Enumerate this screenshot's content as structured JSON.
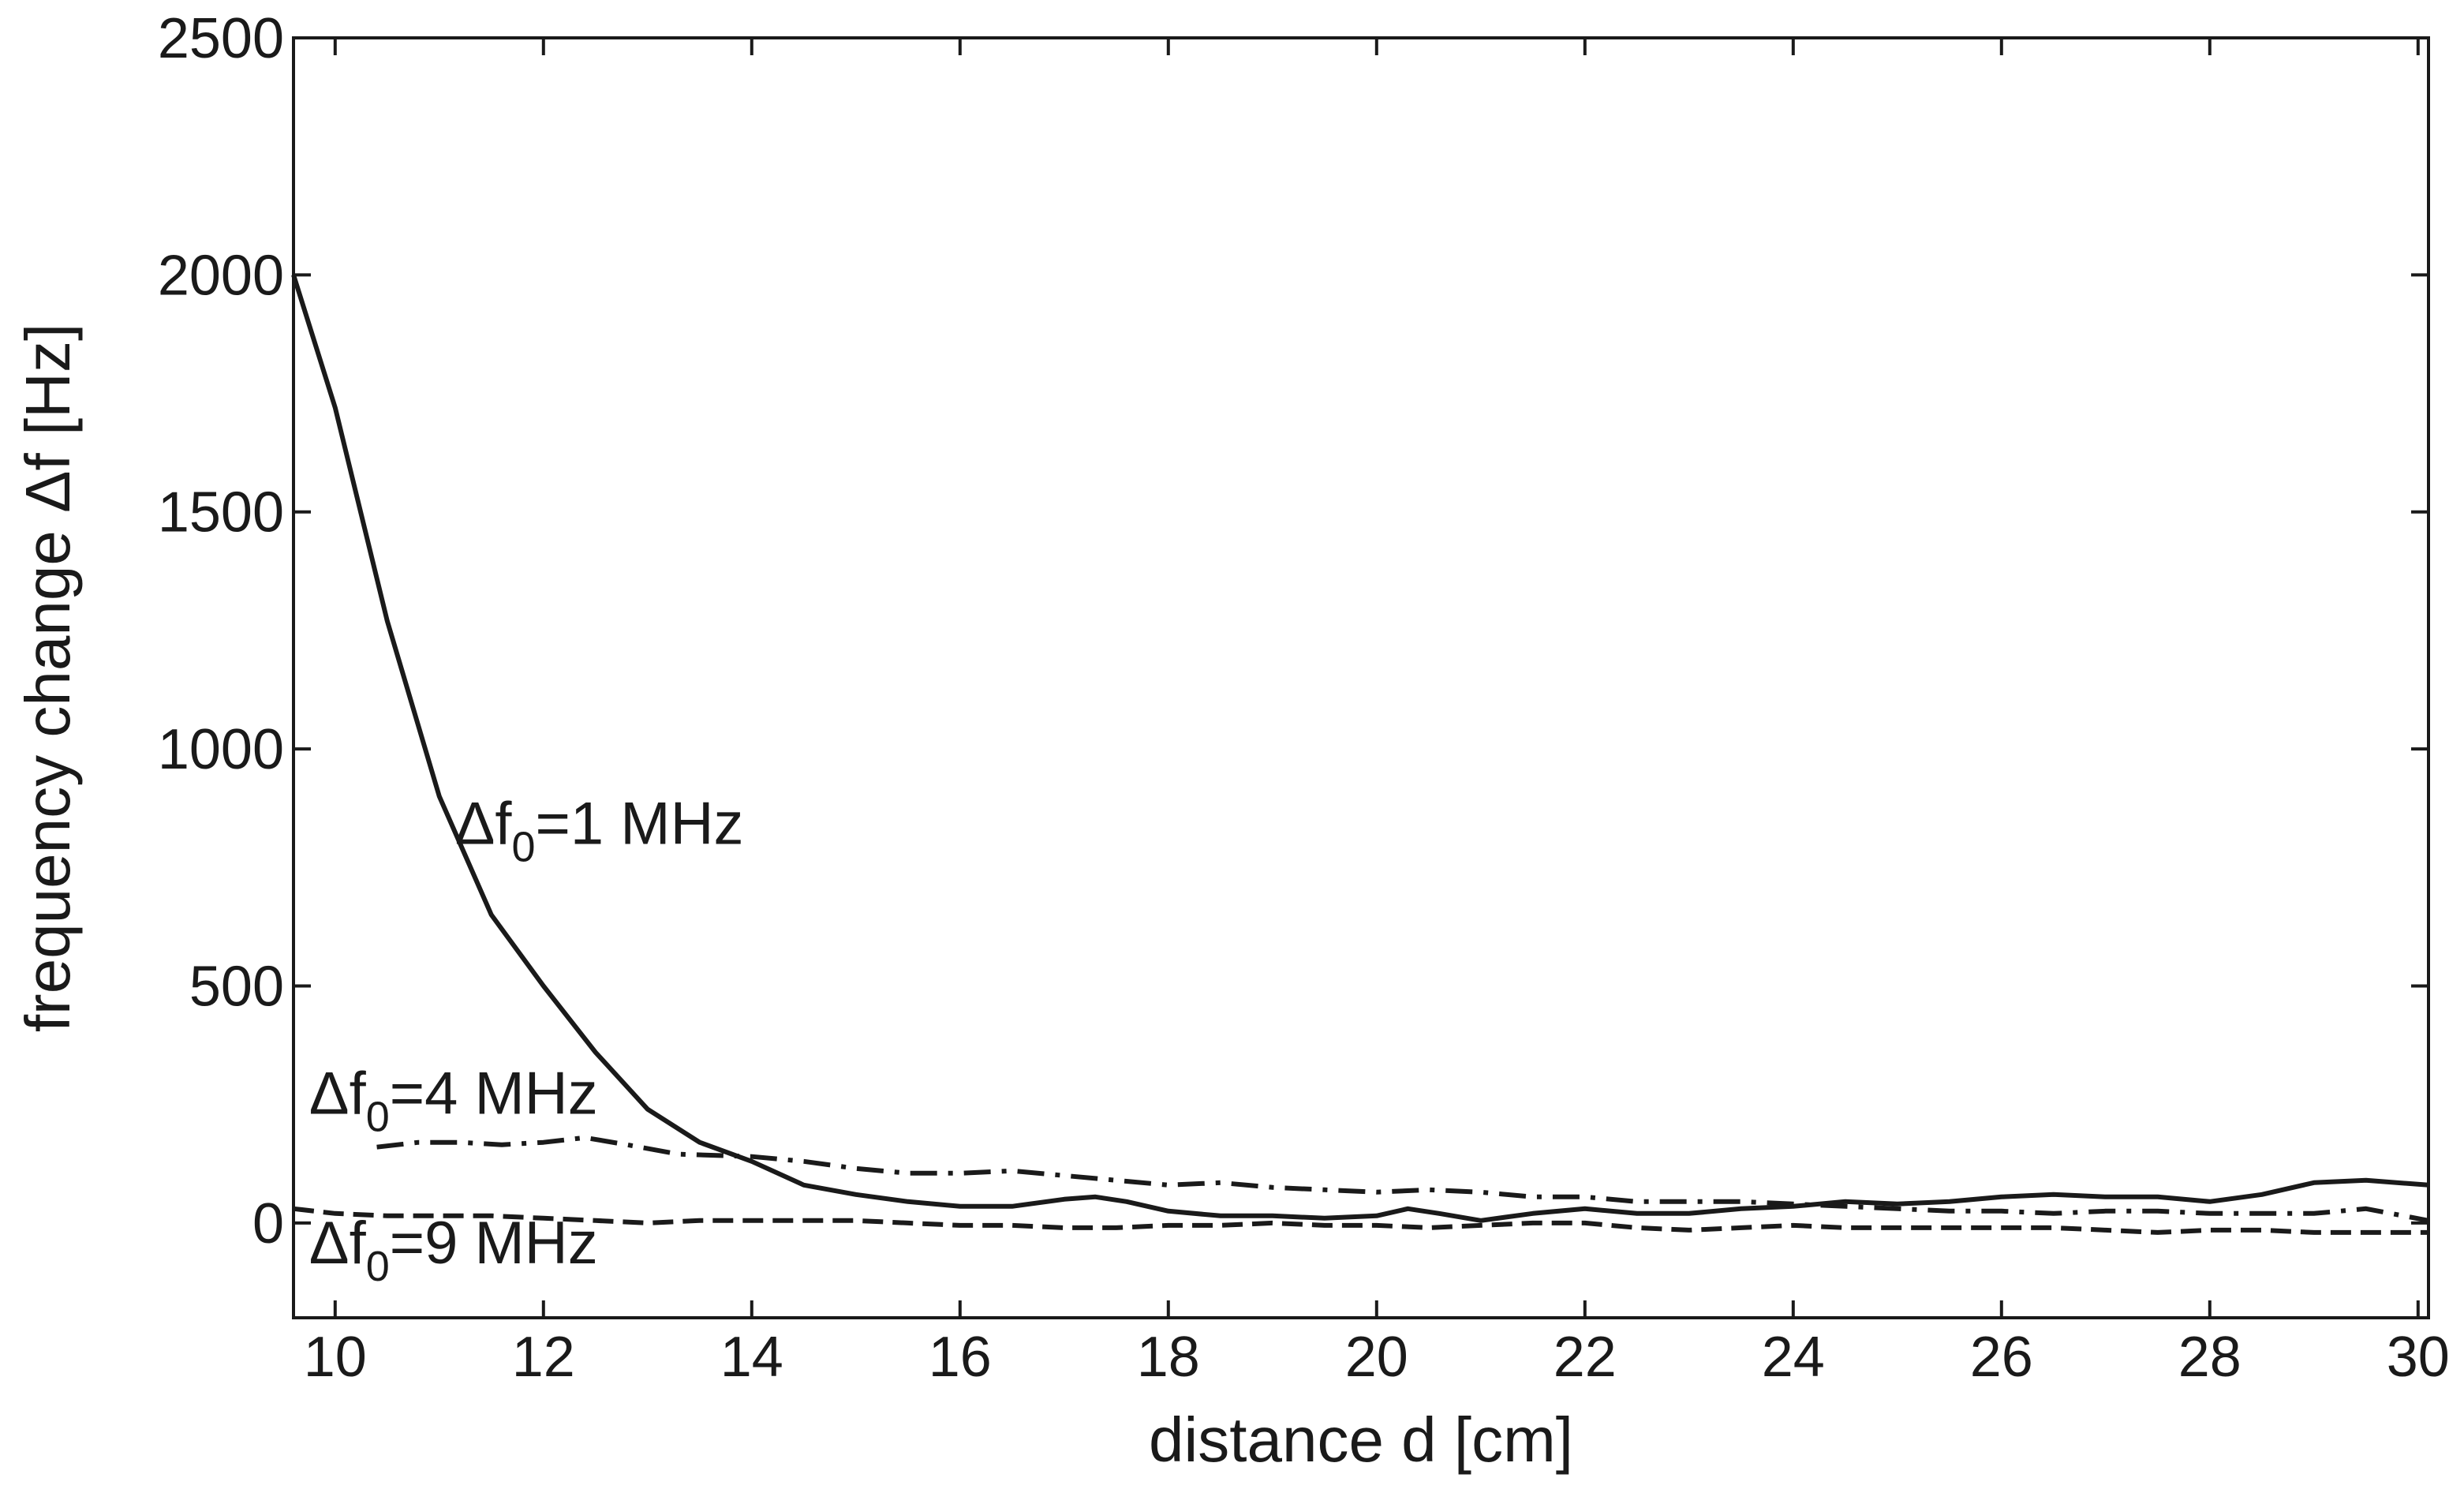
{
  "chart_data": {
    "type": "line",
    "xlabel": "distance d [cm]",
    "ylabel": "frequency change Δf [Hz]",
    "xlim": [
      9.6,
      30.1
    ],
    "ylim": [
      -200,
      2500
    ],
    "xticks": [
      10,
      12,
      14,
      16,
      18,
      20,
      22,
      24,
      26,
      28,
      30
    ],
    "yticks": [
      0,
      500,
      1000,
      1500,
      2000,
      2500
    ],
    "grid": false,
    "colors": {
      "line": "#1a1a1a",
      "axes": "#1a1a1a"
    },
    "series": [
      {
        "name": "Δf0=1 MHz",
        "style": "solid",
        "points": [
          [
            9.6,
            2000
          ],
          [
            10.0,
            1720
          ],
          [
            10.5,
            1270
          ],
          [
            11.0,
            900
          ],
          [
            11.5,
            650
          ],
          [
            12.0,
            500
          ],
          [
            12.5,
            360
          ],
          [
            13.0,
            240
          ],
          [
            13.5,
            170
          ],
          [
            14.0,
            130
          ],
          [
            14.5,
            80
          ],
          [
            15.0,
            60
          ],
          [
            15.5,
            45
          ],
          [
            16.0,
            35
          ],
          [
            16.5,
            35
          ],
          [
            17.0,
            50
          ],
          [
            17.3,
            55
          ],
          [
            17.6,
            45
          ],
          [
            18.0,
            25
          ],
          [
            18.5,
            15
          ],
          [
            19.0,
            15
          ],
          [
            19.5,
            10
          ],
          [
            20.0,
            15
          ],
          [
            20.3,
            30
          ],
          [
            20.6,
            20
          ],
          [
            21.0,
            5
          ],
          [
            21.5,
            20
          ],
          [
            22.0,
            30
          ],
          [
            22.5,
            20
          ],
          [
            23.0,
            20
          ],
          [
            23.5,
            30
          ],
          [
            24.0,
            35
          ],
          [
            24.5,
            45
          ],
          [
            25.0,
            40
          ],
          [
            25.5,
            45
          ],
          [
            26.0,
            55
          ],
          [
            26.5,
            60
          ],
          [
            27.0,
            55
          ],
          [
            27.5,
            55
          ],
          [
            28.0,
            45
          ],
          [
            28.5,
            60
          ],
          [
            29.0,
            85
          ],
          [
            29.5,
            90
          ],
          [
            30.1,
            80
          ]
        ]
      },
      {
        "name": "Δf0=4 MHz",
        "style": "dashdot",
        "points": [
          [
            10.4,
            160
          ],
          [
            10.8,
            170
          ],
          [
            11.2,
            170
          ],
          [
            11.6,
            165
          ],
          [
            12.0,
            170
          ],
          [
            12.4,
            180
          ],
          [
            12.8,
            165
          ],
          [
            13.3,
            145
          ],
          [
            14.0,
            140
          ],
          [
            14.5,
            130
          ],
          [
            15.0,
            115
          ],
          [
            15.5,
            105
          ],
          [
            16.0,
            105
          ],
          [
            16.5,
            110
          ],
          [
            17.0,
            100
          ],
          [
            17.5,
            90
          ],
          [
            18.0,
            80
          ],
          [
            18.5,
            85
          ],
          [
            19.0,
            75
          ],
          [
            19.5,
            70
          ],
          [
            20.0,
            65
          ],
          [
            20.5,
            70
          ],
          [
            21.0,
            65
          ],
          [
            21.5,
            55
          ],
          [
            22.0,
            55
          ],
          [
            22.5,
            45
          ],
          [
            23.0,
            45
          ],
          [
            23.5,
            45
          ],
          [
            24.0,
            40
          ],
          [
            24.5,
            35
          ],
          [
            25.0,
            30
          ],
          [
            25.5,
            25
          ],
          [
            26.0,
            25
          ],
          [
            26.5,
            20
          ],
          [
            27.0,
            25
          ],
          [
            27.5,
            25
          ],
          [
            28.0,
            20
          ],
          [
            28.5,
            20
          ],
          [
            29.0,
            20
          ],
          [
            29.5,
            30
          ],
          [
            30.1,
            5
          ]
        ]
      },
      {
        "name": "Δf0=9 MHz",
        "style": "dashed",
        "points": [
          [
            9.6,
            30
          ],
          [
            10.0,
            20
          ],
          [
            10.5,
            15
          ],
          [
            11.0,
            15
          ],
          [
            11.5,
            15
          ],
          [
            12.0,
            10
          ],
          [
            12.5,
            5
          ],
          [
            13.0,
            0
          ],
          [
            13.5,
            5
          ],
          [
            14.0,
            5
          ],
          [
            14.5,
            5
          ],
          [
            15.0,
            5
          ],
          [
            15.5,
            0
          ],
          [
            16.0,
            -5
          ],
          [
            16.5,
            -5
          ],
          [
            17.0,
            -10
          ],
          [
            17.5,
            -10
          ],
          [
            18.0,
            -5
          ],
          [
            18.5,
            -5
          ],
          [
            19.0,
            0
          ],
          [
            19.5,
            -5
          ],
          [
            20.0,
            -5
          ],
          [
            20.5,
            -10
          ],
          [
            21.0,
            -5
          ],
          [
            21.5,
            0
          ],
          [
            22.0,
            0
          ],
          [
            22.5,
            -10
          ],
          [
            23.0,
            -15
          ],
          [
            23.5,
            -10
          ],
          [
            24.0,
            -5
          ],
          [
            24.5,
            -10
          ],
          [
            25.0,
            -10
          ],
          [
            25.5,
            -10
          ],
          [
            26.0,
            -10
          ],
          [
            26.5,
            -10
          ],
          [
            27.0,
            -15
          ],
          [
            27.5,
            -20
          ],
          [
            28.0,
            -15
          ],
          [
            28.5,
            -15
          ],
          [
            29.0,
            -20
          ],
          [
            29.5,
            -20
          ],
          [
            30.1,
            -20
          ]
        ]
      }
    ],
    "annotations": [
      {
        "base": "Δf",
        "sub": "0",
        "rest": "=1 MHz",
        "x": 11.15,
        "y": 800
      },
      {
        "base": "Δf",
        "sub": "0",
        "rest": "=4 MHz",
        "x": 9.75,
        "y": 230
      },
      {
        "base": "Δf",
        "sub": "0",
        "rest": "=9 MHz",
        "x": 9.75,
        "y": -85
      }
    ]
  }
}
